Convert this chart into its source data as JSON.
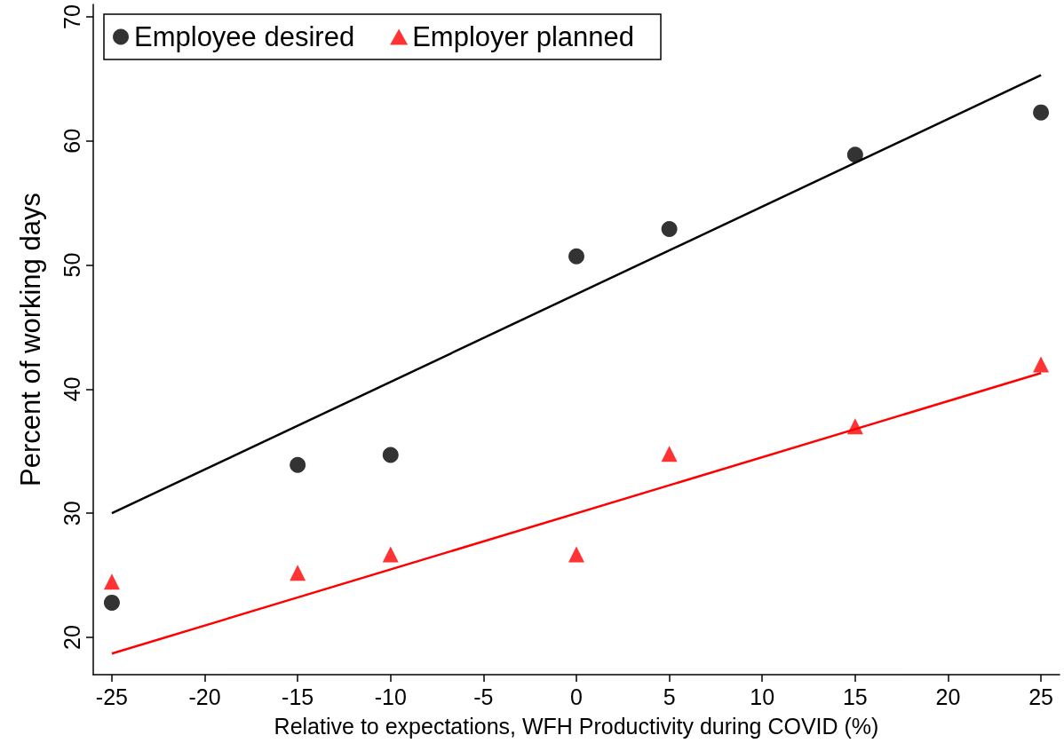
{
  "chart_data": {
    "type": "scatter",
    "xlabel": "Relative to expectations, WFH Productivity during COVID (%)",
    "ylabel": "Percent of working days",
    "xlim": [
      -26,
      26
    ],
    "xticks": [
      -25,
      -20,
      -15,
      -10,
      -5,
      0,
      5,
      10,
      15,
      20,
      25
    ],
    "ylim": [
      17,
      71
    ],
    "yticks": [
      20,
      30,
      40,
      50,
      60,
      70
    ],
    "grid": false,
    "legend": "top left",
    "series": [
      {
        "name": "Employee desired",
        "color": "#000000",
        "marker": "circle",
        "x": [
          -25,
          -15,
          -10,
          0,
          5,
          15,
          25
        ],
        "values": [
          22.8,
          33.9,
          34.7,
          50.7,
          52.9,
          58.9,
          62.3
        ]
      },
      {
        "name": "Employer planned",
        "color": "#ff0000",
        "marker": "triangle",
        "x": [
          -25,
          -15,
          -10,
          0,
          5,
          15,
          25
        ],
        "values": [
          24.5,
          25.2,
          26.7,
          26.7,
          34.8,
          37.0,
          42.0
        ]
      },
      {
        "type": "line",
        "color": "#000000",
        "marker": "none",
        "x": [
          -25,
          25
        ],
        "values": [
          30.0,
          65.3
        ]
      },
      {
        "type": "line",
        "color": "#ff0000",
        "marker": "none",
        "x": [
          -25,
          25
        ],
        "values": [
          18.7,
          41.3
        ]
      }
    ]
  }
}
